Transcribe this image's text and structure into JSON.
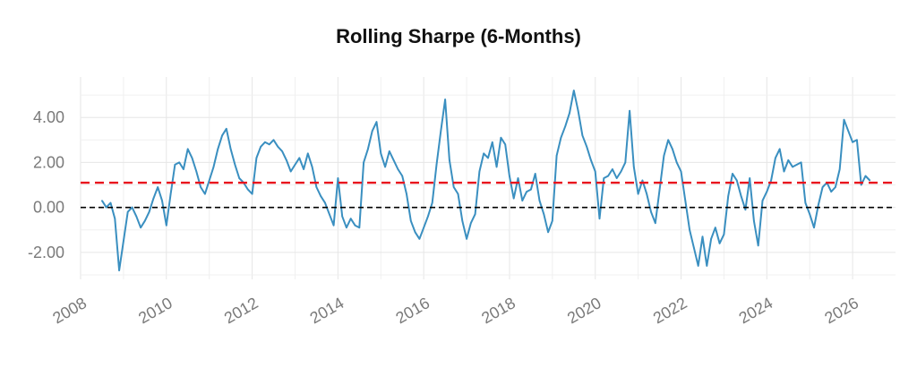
{
  "chart_data": {
    "type": "line",
    "title": "Rolling Sharpe (6-Months)",
    "xlabel": "",
    "ylabel": "",
    "xlim": [
      2008.0,
      2027.0
    ],
    "ylim": [
      -3.2,
      5.8
    ],
    "grid": true,
    "x_ticks": [
      "2008",
      "2010",
      "2012",
      "2014",
      "2016",
      "2018",
      "2020",
      "2022",
      "2024",
      "2026"
    ],
    "y_ticks": [
      "-2.00",
      "0.00",
      "2.00",
      "4.00"
    ],
    "y_tick_values": [
      -2,
      0,
      2,
      4
    ],
    "mean_line": 1.1,
    "zero_line": 0.0,
    "colors": {
      "series": "#3a8fc0",
      "mean": "#e8121c",
      "zero": "#000000",
      "grid": "#e6e6e6",
      "tick": "#7a7a7a"
    },
    "series": [
      {
        "x": [
          2008.5,
          2008.6,
          2008.7,
          2008.8,
          2008.9,
          2009.0,
          2009.1,
          2009.2,
          2009.3,
          2009.4,
          2009.5,
          2009.6,
          2009.7,
          2009.8,
          2009.9,
          2010.0,
          2010.1,
          2010.2,
          2010.3,
          2010.4,
          2010.5,
          2010.6,
          2010.7,
          2010.8,
          2010.9,
          2011.0,
          2011.1,
          2011.2,
          2011.3,
          2011.4,
          2011.5,
          2011.6,
          2011.7,
          2011.8,
          2011.9,
          2012.0,
          2012.1,
          2012.2,
          2012.3,
          2012.4,
          2012.5,
          2012.6,
          2012.7,
          2012.8,
          2012.9,
          2013.0,
          2013.1,
          2013.2,
          2013.3,
          2013.4,
          2013.5,
          2013.6,
          2013.7,
          2013.8,
          2013.9,
          2014.0,
          2014.1,
          2014.2,
          2014.3,
          2014.4,
          2014.5,
          2014.6,
          2014.7,
          2014.8,
          2014.9,
          2015.0,
          2015.1,
          2015.2,
          2015.3,
          2015.4,
          2015.5,
          2015.6,
          2015.7,
          2015.8,
          2015.9,
          2016.0,
          2016.1,
          2016.2,
          2016.3,
          2016.4,
          2016.5,
          2016.6,
          2016.7,
          2016.8,
          2016.9,
          2017.0,
          2017.1,
          2017.2,
          2017.3,
          2017.4,
          2017.5,
          2017.6,
          2017.7,
          2017.8,
          2017.9,
          2018.0,
          2018.1,
          2018.2,
          2018.3,
          2018.4,
          2018.5,
          2018.6,
          2018.7,
          2018.8,
          2018.9,
          2019.0,
          2019.1,
          2019.2,
          2019.3,
          2019.4,
          2019.5,
          2019.6,
          2019.7,
          2019.8,
          2019.9,
          2020.0,
          2020.1,
          2020.2,
          2020.3,
          2020.4,
          2020.5,
          2020.6,
          2020.7,
          2020.8,
          2020.9,
          2021.0,
          2021.1,
          2021.2,
          2021.3,
          2021.4,
          2021.5,
          2021.6,
          2021.7,
          2021.8,
          2021.9,
          2022.0,
          2022.1,
          2022.2,
          2022.3,
          2022.4,
          2022.5,
          2022.6,
          2022.7,
          2022.8,
          2022.9,
          2023.0,
          2023.1,
          2023.2,
          2023.3,
          2023.4,
          2023.5,
          2023.6,
          2023.7,
          2023.8,
          2023.9,
          2024.0,
          2024.1,
          2024.2,
          2024.3,
          2024.4,
          2024.5,
          2024.6,
          2024.7,
          2024.8,
          2024.9,
          2025.0,
          2025.1,
          2025.2,
          2025.3,
          2025.4,
          2025.5,
          2025.6,
          2025.7,
          2025.8,
          2025.9,
          2026.0,
          2026.1,
          2026.2,
          2026.3,
          2026.4
        ],
        "y": [
          0.3,
          0.0,
          0.2,
          -0.5,
          -2.8,
          -1.5,
          -0.2,
          0.0,
          -0.4,
          -0.9,
          -0.6,
          -0.2,
          0.4,
          0.9,
          0.3,
          -0.8,
          0.6,
          1.9,
          2.0,
          1.7,
          2.6,
          2.2,
          1.6,
          0.9,
          0.6,
          1.2,
          1.8,
          2.6,
          3.2,
          3.5,
          2.6,
          1.9,
          1.3,
          1.1,
          0.8,
          0.6,
          2.2,
          2.7,
          2.9,
          2.8,
          3.0,
          2.7,
          2.5,
          2.1,
          1.6,
          1.9,
          2.2,
          1.7,
          2.4,
          1.8,
          0.9,
          0.5,
          0.2,
          -0.3,
          -0.8,
          1.3,
          -0.4,
          -0.9,
          -0.5,
          -0.8,
          -0.9,
          2.0,
          2.6,
          3.4,
          3.8,
          2.4,
          1.8,
          2.5,
          2.1,
          1.7,
          1.4,
          0.6,
          -0.6,
          -1.1,
          -1.4,
          -0.9,
          -0.4,
          0.2,
          1.9,
          3.4,
          4.8,
          2.1,
          0.9,
          0.6,
          -0.6,
          -1.4,
          -0.7,
          -0.3,
          1.6,
          2.4,
          2.2,
          2.9,
          1.8,
          3.1,
          2.8,
          1.4,
          0.4,
          1.3,
          0.3,
          0.7,
          0.8,
          1.5,
          0.3,
          -0.3,
          -1.1,
          -0.6,
          2.3,
          3.1,
          3.6,
          4.2,
          5.2,
          4.3,
          3.2,
          2.7,
          2.1,
          1.6,
          -0.5,
          1.3,
          1.4,
          1.7,
          1.3,
          1.6,
          2.0,
          4.3,
          1.8,
          0.6,
          1.2,
          0.6,
          -0.2,
          -0.7,
          0.8,
          2.3,
          3.0,
          2.6,
          2.0,
          1.6,
          0.3,
          -1.0,
          -1.8,
          -2.6,
          -1.3,
          -2.6,
          -1.4,
          -0.9,
          -1.6,
          -1.2,
          0.5,
          1.5,
          1.2,
          0.5,
          -0.1,
          1.3,
          -0.6,
          -1.7,
          0.3,
          0.7,
          1.2,
          2.2,
          2.6,
          1.6,
          2.1,
          1.8,
          1.9,
          2.0,
          0.2,
          -0.3,
          -0.9,
          0.1,
          0.9,
          1.1,
          0.7,
          0.9,
          1.7,
          3.9,
          3.4,
          2.9,
          3.0,
          1.0,
          1.4,
          1.2
        ]
      }
    ]
  }
}
